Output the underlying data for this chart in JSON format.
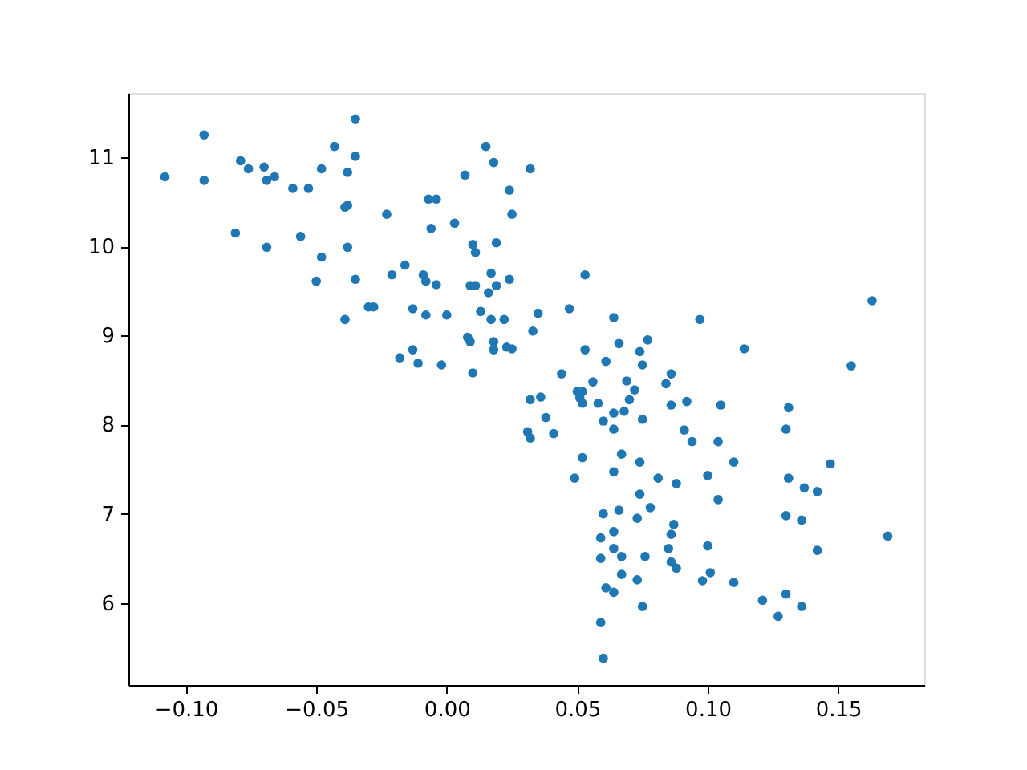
{
  "chart_data": {
    "type": "scatter",
    "marker": "circle",
    "grid": false,
    "xlim": [
      -0.122,
      0.183
    ],
    "ylim": [
      5.08,
      11.72
    ],
    "xticks": [
      {
        "value": -0.1,
        "label": "−0.10"
      },
      {
        "value": -0.05,
        "label": "−0.05"
      },
      {
        "value": 0,
        "label": "0.00"
      },
      {
        "value": 0.05,
        "label": "0.05"
      },
      {
        "value": 0.1,
        "label": "0.10"
      },
      {
        "value": 0.15,
        "label": "0.15"
      }
    ],
    "yticks": [
      6,
      7,
      8,
      9,
      10,
      11
    ],
    "series": [
      {
        "color": "#1f77b4",
        "x": [
          -0.108,
          -0.093,
          -0.093,
          -0.079,
          -0.076,
          -0.07,
          -0.069,
          -0.066,
          -0.059,
          -0.053,
          -0.048,
          -0.043,
          -0.035,
          -0.035,
          -0.038,
          -0.039,
          -0.038,
          -0.023,
          -0.007,
          -0.004,
          -0.006,
          0.007,
          0.015,
          0.018,
          0.024,
          0.025,
          0.032,
          -0.081,
          -0.069,
          -0.056,
          -0.048,
          -0.038,
          -0.05,
          -0.035,
          -0.016,
          -0.021,
          -0.009,
          -0.008,
          -0.004,
          0.003,
          0.01,
          0.011,
          0.019,
          0.017,
          0.024,
          0.009,
          0.011,
          0.019,
          0.016,
          -0.03,
          -0.028,
          -0.013,
          -0.008,
          0.0,
          0.013,
          0.017,
          0.022,
          -0.039,
          0.008,
          0.009,
          0.018,
          0.018,
          0.023,
          0.025,
          -0.018,
          -0.013,
          -0.011,
          -0.002,
          0.01,
          0.053,
          0.035,
          0.047,
          0.033,
          0.064,
          0.097,
          0.163,
          0.053,
          0.066,
          0.077,
          0.074,
          0.075,
          0.061,
          0.114,
          0.155,
          0.044,
          0.056,
          0.069,
          0.072,
          0.086,
          0.084,
          0.05,
          0.052,
          0.051,
          0.052,
          0.032,
          0.036,
          0.058,
          0.07,
          0.086,
          0.092,
          0.105,
          0.131,
          0.038,
          0.031,
          0.032,
          0.041,
          0.06,
          0.064,
          0.068,
          0.075,
          0.064,
          0.091,
          0.094,
          0.104,
          0.13,
          0.052,
          0.067,
          0.074,
          0.11,
          0.147,
          0.049,
          0.064,
          0.081,
          0.088,
          0.1,
          0.131,
          0.074,
          0.104,
          0.137,
          0.142,
          0.06,
          0.066,
          0.078,
          0.073,
          0.13,
          0.136,
          0.087,
          0.086,
          0.064,
          0.059,
          0.169,
          0.1,
          0.085,
          0.064,
          0.142,
          0.059,
          0.067,
          0.076,
          0.086,
          0.088,
          0.067,
          0.073,
          0.101,
          0.098,
          0.11,
          0.061,
          0.064,
          0.121,
          0.13,
          0.136,
          0.075,
          0.127,
          0.059,
          0.06
        ],
        "values": [
          10.78,
          11.25,
          10.74,
          10.96,
          10.87,
          10.89,
          10.74,
          10.78,
          10.65,
          10.65,
          10.87,
          11.12,
          11.43,
          11.01,
          10.83,
          10.44,
          10.46,
          10.36,
          10.53,
          10.53,
          10.2,
          10.8,
          11.12,
          10.94,
          10.63,
          10.36,
          10.87,
          10.15,
          9.99,
          10.11,
          9.88,
          9.99,
          9.61,
          9.63,
          9.79,
          9.68,
          9.68,
          9.61,
          9.57,
          10.26,
          10.02,
          9.93,
          10.04,
          9.7,
          9.63,
          9.56,
          9.56,
          9.56,
          9.48,
          9.32,
          9.32,
          9.3,
          9.23,
          9.23,
          9.27,
          9.18,
          9.18,
          9.18,
          8.98,
          8.93,
          8.93,
          8.84,
          8.87,
          8.85,
          8.75,
          8.84,
          8.69,
          8.67,
          8.58,
          9.68,
          9.25,
          9.3,
          9.05,
          9.2,
          9.18,
          9.39,
          8.84,
          8.91,
          8.95,
          8.82,
          8.67,
          8.71,
          8.85,
          8.66,
          8.57,
          8.48,
          8.49,
          8.39,
          8.57,
          8.46,
          8.37,
          8.37,
          8.3,
          8.24,
          8.28,
          8.31,
          8.24,
          8.28,
          8.22,
          8.26,
          8.22,
          8.19,
          8.08,
          7.92,
          7.85,
          7.9,
          8.04,
          8.13,
          8.15,
          8.06,
          7.95,
          7.94,
          7.81,
          7.81,
          7.95,
          7.63,
          7.67,
          7.58,
          7.58,
          7.56,
          7.4,
          7.47,
          7.4,
          7.34,
          7.43,
          7.4,
          7.22,
          7.16,
          7.29,
          7.25,
          7.0,
          7.04,
          7.07,
          6.95,
          6.98,
          6.93,
          6.88,
          6.77,
          6.8,
          6.73,
          6.75,
          6.64,
          6.61,
          6.61,
          6.59,
          6.5,
          6.52,
          6.52,
          6.46,
          6.39,
          6.32,
          6.26,
          6.34,
          6.25,
          6.23,
          6.17,
          6.12,
          6.03,
          6.1,
          5.96,
          5.96,
          5.85,
          5.78,
          5.38
        ]
      }
    ]
  }
}
